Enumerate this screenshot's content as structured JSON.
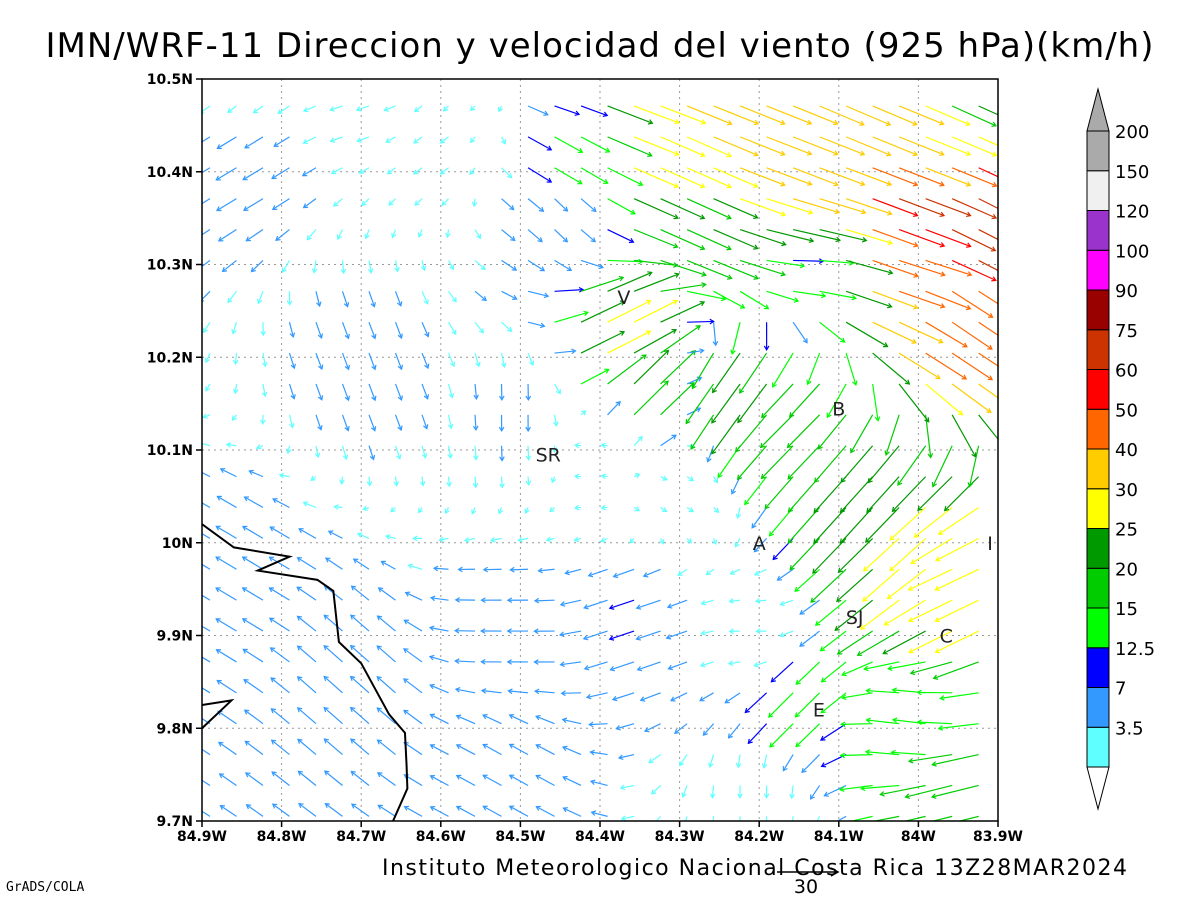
{
  "chart_data": {
    "type": "vector-field",
    "title": "IMN/WRF-11 Direccion y velocidad del viento (925 hPa)(km/h)",
    "footer": "Instituto Meteorologico Nacional Costa Rica 13Z28MAR2024",
    "credit": "GrADS/COLA",
    "reference_vector_value": "30",
    "xlim": [
      -84.9,
      -83.9
    ],
    "ylim": [
      9.7,
      10.5
    ],
    "x_ticks": [
      {
        "v": -84.9,
        "label": "84.9W"
      },
      {
        "v": -84.8,
        "label": "84.8W"
      },
      {
        "v": -84.7,
        "label": "84.7W"
      },
      {
        "v": -84.6,
        "label": "84.6W"
      },
      {
        "v": -84.5,
        "label": "84.5W"
      },
      {
        "v": -84.4,
        "label": "84.4W"
      },
      {
        "v": -84.3,
        "label": "84.3W"
      },
      {
        "v": -84.2,
        "label": "84.2W"
      },
      {
        "v": -84.1,
        "label": "84.1W"
      },
      {
        "v": -84.0,
        "label": "84W"
      },
      {
        "v": -83.9,
        "label": "83.9W"
      }
    ],
    "y_ticks": [
      {
        "v": 10.5,
        "label": "10.5N"
      },
      {
        "v": 10.4,
        "label": "10.4N"
      },
      {
        "v": 10.3,
        "label": "10.3N"
      },
      {
        "v": 10.2,
        "label": "10.2N"
      },
      {
        "v": 10.1,
        "label": "10.1N"
      },
      {
        "v": 10.0,
        "label": "10N"
      },
      {
        "v": 9.9,
        "label": "9.9N"
      },
      {
        "v": 9.8,
        "label": "9.8N"
      },
      {
        "v": 9.7,
        "label": "9.7N"
      }
    ],
    "grid": true,
    "colorbar": {
      "position": "right",
      "labels": [
        "200",
        "150",
        "120",
        "100",
        "90",
        "75",
        "60",
        "50",
        "40",
        "30",
        "25",
        "20",
        "15",
        "12.5",
        "7",
        "3.5"
      ],
      "thresholds": [
        3.5,
        7,
        12.5,
        15,
        20,
        25,
        30,
        40,
        50,
        60,
        75,
        90,
        100,
        120,
        150,
        200
      ],
      "colors": [
        "#60ffff",
        "#3399ff",
        "#0000ff",
        "#00ff00",
        "#00cc00",
        "#009900",
        "#ffff00",
        "#ffcc00",
        "#ff6600",
        "#ff0000",
        "#cc3300",
        "#990000",
        "#ff00ff",
        "#9933cc",
        "#f0f0f0",
        "#aaaaaa"
      ]
    },
    "places": [
      {
        "label": "V",
        "lon": -84.37,
        "lat": 10.265
      },
      {
        "label": "SR",
        "lon": -84.465,
        "lat": 10.095
      },
      {
        "label": "B",
        "lon": -84.1,
        "lat": 10.145
      },
      {
        "label": "A",
        "lon": -84.2,
        "lat": 10.0
      },
      {
        "label": "I",
        "lon": -83.91,
        "lat": 10.0
      },
      {
        "label": "SJ",
        "lon": -84.08,
        "lat": 9.92
      },
      {
        "label": "C",
        "lon": -83.965,
        "lat": 9.9
      },
      {
        "label": "E",
        "lon": -84.125,
        "lat": 9.82
      }
    ],
    "coastline": [
      [
        -84.9,
        10.02
      ],
      [
        -84.86,
        9.995
      ],
      [
        -84.79,
        9.985
      ],
      [
        -84.83,
        9.97
      ],
      [
        -84.755,
        9.96
      ],
      [
        -84.735,
        9.948
      ],
      [
        -84.728,
        9.893
      ],
      [
        -84.7,
        9.87
      ],
      [
        -84.665,
        9.815
      ],
      [
        -84.645,
        9.795
      ],
      [
        -84.643,
        9.76
      ],
      [
        -84.642,
        9.735
      ],
      [
        -84.66,
        9.7
      ]
    ],
    "coastline_island": [
      [
        -84.9,
        9.8
      ],
      [
        -84.863,
        9.83
      ],
      [
        -84.9,
        9.825
      ]
    ],
    "wind_samples": [
      {
        "lon": -84.85,
        "lat": 10.48,
        "u": -4,
        "v": -3
      },
      {
        "lon": -84.7,
        "lat": 10.48,
        "u": -6,
        "v": -2
      },
      {
        "lon": -84.55,
        "lat": 10.48,
        "u": -2,
        "v": -2
      },
      {
        "lon": -84.45,
        "lat": 10.48,
        "u": 12,
        "v": -4
      },
      {
        "lon": -84.35,
        "lat": 10.48,
        "u": 32,
        "v": -12
      },
      {
        "lon": -84.25,
        "lat": 10.48,
        "u": 45,
        "v": -18
      },
      {
        "lon": -84.1,
        "lat": 10.48,
        "u": 42,
        "v": -18
      },
      {
        "lon": -83.95,
        "lat": 10.48,
        "u": 22,
        "v": -10
      },
      {
        "lon": -84.85,
        "lat": 10.42,
        "u": -10,
        "v": -6
      },
      {
        "lon": -84.6,
        "lat": 10.42,
        "u": -4,
        "v": -3
      },
      {
        "lon": -84.45,
        "lat": 10.42,
        "u": 14,
        "v": -8
      },
      {
        "lon": -84.3,
        "lat": 10.42,
        "u": 36,
        "v": -16
      },
      {
        "lon": -84.15,
        "lat": 10.42,
        "u": 46,
        "v": -18
      },
      {
        "lon": -84.0,
        "lat": 10.42,
        "u": 35,
        "v": -14
      },
      {
        "lon": -84.45,
        "lat": 10.36,
        "u": 6,
        "v": -6
      },
      {
        "lon": -84.3,
        "lat": 10.36,
        "u": 22,
        "v": -10
      },
      {
        "lon": -84.15,
        "lat": 10.36,
        "u": 40,
        "v": -12
      },
      {
        "lon": -84.0,
        "lat": 10.37,
        "u": 85,
        "v": -32
      },
      {
        "lon": -83.93,
        "lat": 10.34,
        "u": 78,
        "v": -40
      },
      {
        "lon": -84.15,
        "lat": 10.315,
        "u": 14,
        "v": 0
      },
      {
        "lon": -84.0,
        "lat": 10.3,
        "u": 48,
        "v": -15
      },
      {
        "lon": -83.95,
        "lat": 10.25,
        "u": 44,
        "v": -30
      },
      {
        "lon": -84.38,
        "lat": 10.22,
        "u": 28,
        "v": 14
      },
      {
        "lon": -84.35,
        "lat": 10.16,
        "u": 18,
        "v": 18
      },
      {
        "lon": -84.22,
        "lat": 10.17,
        "u": -16,
        "v": -22
      },
      {
        "lon": -84.15,
        "lat": 10.14,
        "u": -16,
        "v": -16
      },
      {
        "lon": -84.05,
        "lat": 10.06,
        "u": -18,
        "v": -20
      },
      {
        "lon": -84.0,
        "lat": 10.0,
        "u": -24,
        "v": -22
      },
      {
        "lon": -83.95,
        "lat": 9.97,
        "u": -30,
        "v": -14
      },
      {
        "lon": -84.7,
        "lat": 10.2,
        "u": 3,
        "v": -8
      },
      {
        "lon": -84.5,
        "lat": 10.15,
        "u": 0,
        "v": -8
      },
      {
        "lon": -84.4,
        "lat": 10.1,
        "u": -2,
        "v": 0
      },
      {
        "lon": -84.3,
        "lat": 10.05,
        "u": 3,
        "v": -2
      },
      {
        "lon": -84.85,
        "lat": 9.95,
        "u": -10,
        "v": 6
      },
      {
        "lon": -84.7,
        "lat": 9.85,
        "u": -9,
        "v": 8
      },
      {
        "lon": -84.5,
        "lat": 9.9,
        "u": -10,
        "v": 0
      },
      {
        "lon": -84.35,
        "lat": 9.92,
        "u": -12,
        "v": -4
      },
      {
        "lon": -84.2,
        "lat": 9.9,
        "u": -5,
        "v": 0
      },
      {
        "lon": -84.15,
        "lat": 9.84,
        "u": -12,
        "v": -12
      },
      {
        "lon": -84.0,
        "lat": 9.8,
        "u": -16,
        "v": 2
      },
      {
        "lon": -83.95,
        "lat": 9.73,
        "u": -24,
        "v": -6
      },
      {
        "lon": -84.5,
        "lat": 9.75,
        "u": -9,
        "v": 5
      },
      {
        "lon": -84.2,
        "lat": 9.73,
        "u": 0,
        "v": -6
      }
    ]
  }
}
